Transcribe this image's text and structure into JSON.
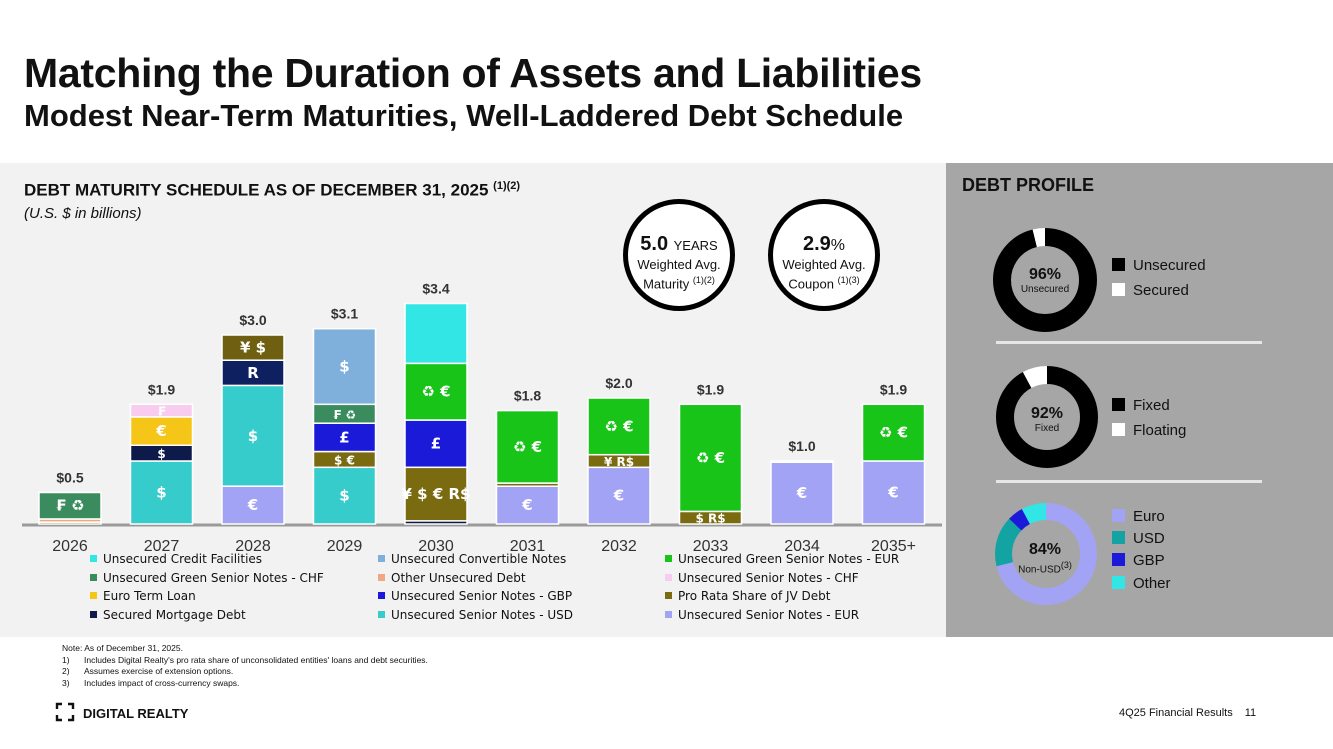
{
  "header": {
    "title": "Matching the Duration of Assets and Liabilities",
    "subtitle": "Modest Near-Term Maturities, Well-Laddered Debt Schedule"
  },
  "chart_heading": "DEBT MATURITY SCHEDULE AS OF DECEMBER 31, 2025",
  "chart_heading_sup": "(1)(2)",
  "chart_units": "(U.S. $ in billions)",
  "kpis": {
    "maturity": {
      "value": "5.0",
      "unit": "YEARS",
      "label": "Weighted Avg.",
      "label2": "Maturity",
      "sup": "(1)(2)"
    },
    "coupon": {
      "value": "2.9",
      "unit": "%",
      "label": "Weighted Avg.",
      "label2": "Coupon",
      "sup": "(1)(3)"
    }
  },
  "colors": {
    "credit_facilities": "#33e6e6",
    "convertible": "#7fb0dc",
    "green_eur": "#18c418",
    "green_chf": "#3a8c5f",
    "other_unsecured": "#f0a882",
    "senior_chf": "#f8ccee",
    "euro_term": "#f5c518",
    "senior_gbp": "#1a1ad8",
    "jv": "#7a6b10",
    "mortgage": "#0e1a4a",
    "senior_usd": "#36cccc",
    "senior_eur": "#a3a3f5",
    "yen_jv": "#6e6010",
    "senior_brl": "#0f2060"
  },
  "chart_data": {
    "type": "bar",
    "stacked": true,
    "title": "DEBT MATURITY SCHEDULE AS OF DECEMBER 31, 2025",
    "ylabel": "U.S. $ in billions",
    "categories": [
      "2026",
      "2027",
      "2028",
      "2029",
      "2030",
      "2031",
      "2032",
      "2033",
      "2034",
      "2035+"
    ],
    "totals": [
      "$0.5",
      "$1.9",
      "$3.0",
      "$3.1",
      "$3.4",
      "$1.8",
      "$2.0",
      "$1.9",
      "$1.0",
      "$1.9"
    ],
    "ylim": [
      0,
      3.6
    ],
    "series": [
      {
        "name": "Unsecured Credit Facilities",
        "color_key": "credit_facilities"
      },
      {
        "name": "Unsecured Convertible Notes",
        "color_key": "convertible"
      },
      {
        "name": "Unsecured Green Senior Notes - EUR",
        "color_key": "green_eur"
      },
      {
        "name": "Unsecured Green Senior Notes - CHF",
        "color_key": "green_chf"
      },
      {
        "name": "Other Unsecured Debt",
        "color_key": "other_unsecured"
      },
      {
        "name": "Unsecured Senior Notes - CHF",
        "color_key": "senior_chf"
      },
      {
        "name": "Euro Term Loan",
        "color_key": "euro_term"
      },
      {
        "name": "Unsecured Senior Notes - GBP",
        "color_key": "senior_gbp"
      },
      {
        "name": "Pro Rata Share of JV Debt",
        "color_key": "jv"
      },
      {
        "name": "Secured Mortgage Debt",
        "color_key": "mortgage"
      },
      {
        "name": "Unsecured Senior Notes - USD",
        "color_key": "senior_usd"
      },
      {
        "name": "Unsecured Senior Notes - EUR",
        "color_key": "senior_eur"
      }
    ],
    "stacks": [
      [
        {
          "c": "jv",
          "v": 0.03
        },
        {
          "c": "other_unsecured",
          "v": 0.05
        },
        {
          "c": "green_chf",
          "v": 0.42,
          "label": "₣ ♻"
        }
      ],
      [
        {
          "c": "senior_usd",
          "v": 1.0,
          "label": "$"
        },
        {
          "c": "mortgage",
          "v": 0.25,
          "label": "$"
        },
        {
          "c": "euro_term",
          "v": 0.45,
          "label": "€"
        },
        {
          "c": "senior_chf",
          "v": 0.2,
          "label": "₣"
        }
      ],
      [
        {
          "c": "senior_eur",
          "v": 0.6,
          "label": "€"
        },
        {
          "c": "senior_usd",
          "v": 1.6,
          "label": "$"
        },
        {
          "c": "senior_brl",
          "v": 0.4,
          "label": "R"
        },
        {
          "c": "yen_jv",
          "v": 0.4,
          "label": "¥ $"
        }
      ],
      [
        {
          "c": "senior_usd",
          "v": 0.9,
          "label": "$"
        },
        {
          "c": "jv",
          "v": 0.25,
          "label": "$ €"
        },
        {
          "c": "senior_gbp",
          "v": 0.45,
          "label": "£"
        },
        {
          "c": "green_chf",
          "v": 0.3,
          "label": "₣ ♻"
        },
        {
          "c": "convertible",
          "v": 1.2,
          "label": "$"
        }
      ],
      [
        {
          "c": "mortgage",
          "v": 0.05
        },
        {
          "c": "jv",
          "v": 0.85,
          "label": "¥ $ € R$"
        },
        {
          "c": "senior_gbp",
          "v": 0.75,
          "label": "£"
        },
        {
          "c": "green_eur",
          "v": 0.9,
          "label": "♻ €"
        },
        {
          "c": "credit_facilities",
          "v": 0.95
        }
      ],
      [
        {
          "c": "senior_eur",
          "v": 0.6,
          "label": "€"
        },
        {
          "c": "jv",
          "v": 0.05
        },
        {
          "c": "green_eur",
          "v": 1.15,
          "label": "♻ €"
        }
      ],
      [
        {
          "c": "senior_eur",
          "v": 0.9,
          "label": "€"
        },
        {
          "c": "jv",
          "v": 0.2,
          "label": "¥ R$"
        },
        {
          "c": "green_eur",
          "v": 0.9,
          "label": "♻ €"
        }
      ],
      [
        {
          "c": "jv",
          "v": 0.2,
          "label": "$ R$"
        },
        {
          "c": "green_eur",
          "v": 1.7,
          "label": "♻ €"
        }
      ],
      [
        {
          "c": "senior_eur",
          "v": 0.98,
          "label": "€"
        },
        {
          "c": "jv",
          "v": 0.02
        }
      ],
      [
        {
          "c": "senior_eur",
          "v": 1.0,
          "label": "€"
        },
        {
          "c": "green_eur",
          "v": 0.9,
          "label": "♻ €"
        }
      ]
    ]
  },
  "legend": [
    "Unsecured Credit Facilities",
    "Unsecured Convertible Notes",
    "Unsecured Green Senior Notes - EUR",
    "Unsecured Green Senior Notes - CHF",
    "Other Unsecured Debt",
    "Unsecured Senior Notes - CHF",
    "Euro Term Loan",
    "Unsecured Senior Notes - GBP",
    "Pro Rata Share of JV Debt",
    "Secured Mortgage Debt",
    "Unsecured Senior Notes - USD",
    "Unsecured Senior Notes - EUR"
  ],
  "profile": {
    "title": "DEBT PROFILE",
    "donuts": [
      {
        "pct": "96%",
        "label": "Unsecured",
        "sup": "",
        "slices": [
          {
            "name": "Unsecured",
            "value": 96,
            "color": "#000000"
          },
          {
            "name": "Secured",
            "value": 4,
            "color": "#ffffff"
          }
        ]
      },
      {
        "pct": "92%",
        "label": "Fixed",
        "sup": "",
        "slices": [
          {
            "name": "Fixed",
            "value": 92,
            "color": "#000000"
          },
          {
            "name": "Floating",
            "value": 8,
            "color": "#ffffff"
          }
        ]
      },
      {
        "pct": "84%",
        "label": "Non-USD",
        "sup": "(3)",
        "slices": [
          {
            "name": "Euro",
            "value": 71,
            "color": "#a3a3f5"
          },
          {
            "name": "USD",
            "value": 16,
            "color": "#14a3a3"
          },
          {
            "name": "GBP",
            "value": 5,
            "color": "#1a1ad8"
          },
          {
            "name": "Other",
            "value": 8,
            "color": "#33e6e6"
          }
        ]
      }
    ],
    "legend1": [
      "Unsecured",
      "Secured"
    ],
    "legend2": [
      "Fixed",
      "Floating"
    ],
    "legend3": [
      "Euro",
      "USD",
      "GBP",
      "Other"
    ]
  },
  "notes": {
    "intro": "Note:  As of December 31, 2025.",
    "items": [
      {
        "n": "1)",
        "t": "Includes Digital Realty's pro rata share of unconsolidated entities' loans and debt securities."
      },
      {
        "n": "2)",
        "t": "Assumes exercise of extension options."
      },
      {
        "n": "3)",
        "t": "Includes impact of cross-currency swaps."
      }
    ]
  },
  "footer": {
    "logo": "DIGITAL REALTY",
    "text": "4Q25 Financial Results",
    "page": "11"
  }
}
